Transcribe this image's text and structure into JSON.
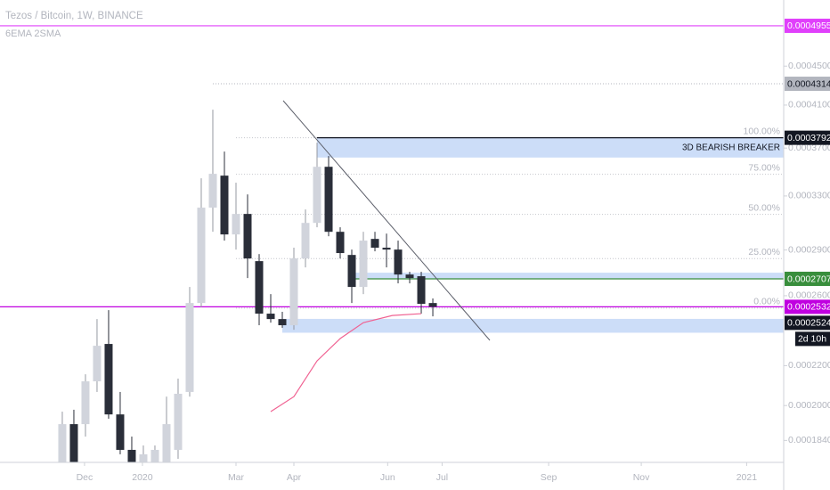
{
  "chart_data": {
    "type": "candlestick",
    "title": "Tezos / Bitcoin, 1W, BINANCE",
    "subtitle": "6EMA 2SMA",
    "log_scale": true,
    "ylim": [
      0.0001746,
      0.000527
    ],
    "yticks": [
      {
        "value": 0.00045,
        "label": "0.0004500"
      },
      {
        "value": 0.00041,
        "label": "0.0004100"
      },
      {
        "value": 0.00037,
        "label": "0.0003700"
      },
      {
        "value": 0.00033,
        "label": "0.0003300"
      },
      {
        "value": 0.00029,
        "label": "0.0002900"
      },
      {
        "value": 0.00026,
        "label": "0.0002600"
      },
      {
        "value": 0.00022,
        "label": "0.0002200"
      },
      {
        "value": 0.0002,
        "label": "0.0002000"
      },
      {
        "value": 0.000184,
        "label": "0.0001840"
      }
    ],
    "xlim": [
      -5.38,
      62.3
    ],
    "xticks": [
      {
        "value": 1.92,
        "label": "Dec"
      },
      {
        "value": 6.92,
        "label": "2020"
      },
      {
        "value": 15.0,
        "label": "Mar"
      },
      {
        "value": 20.0,
        "label": "Apr"
      },
      {
        "value": 28.1,
        "label": "Jun"
      },
      {
        "value": 32.8,
        "label": "Jul"
      },
      {
        "value": 42.0,
        "label": "Sep"
      },
      {
        "value": 50.0,
        "label": "Nov"
      },
      {
        "value": 59.1,
        "label": "2021"
      }
    ],
    "x": [
      0,
      1,
      2,
      3,
      4,
      5,
      6,
      7,
      8,
      9,
      10,
      11,
      12,
      13,
      14,
      15,
      16,
      17,
      18,
      19,
      20,
      21,
      22,
      23,
      24,
      25,
      26,
      27,
      28,
      29,
      30,
      31,
      32
    ],
    "open": [
      0.0001746,
      0.0001913,
      0.0001913,
      0.0002119,
      0.0002317,
      0.0001958,
      0.0001799,
      0.0001746,
      0.0001746,
      0.0001746,
      0.0001799,
      0.0002066,
      0.0002555,
      0.0003209,
      0.0003464,
      0.000301,
      0.0003161,
      0.0002824,
      0.0002491,
      0.0002459,
      0.0002423,
      0.0002842,
      0.0003094,
      0.0003538,
      0.0003029,
      0.0002866,
      0.0002655,
      0.0002978,
      0.0002916,
      0.0002903,
      0.0002735,
      0.0002724,
      0.0002555
    ],
    "high": [
      0.0001971,
      0.000198,
      0.0002155,
      0.0002459,
      0.0002512,
      0.0002066,
      0.0001857,
      0.0001818,
      0.0001818,
      0.0002043,
      0.0002133,
      0.0002655,
      0.0003442,
      0.0004055,
      0.0003669,
      0.0003406,
      0.0003312,
      0.0002872,
      0.000261,
      0.0002502,
      0.0002916,
      0.0003195,
      0.0003748,
      0.000363,
      0.0003062,
      0.0002903,
      0.0003029,
      0.0003029,
      0.0003016,
      0.0002966,
      0.0002753,
      0.0002753,
      0.0002583
    ],
    "low": [
      0.0001746,
      0.0001746,
      0.0001857,
      0.0002066,
      0.0001938,
      0.000178,
      0.0001746,
      0.0001746,
      0.0001746,
      0.0001746,
      0.0001761,
      0.0002043,
      0.0002528,
      0.0003029,
      0.0002966,
      0.0002903,
      0.0002712,
      0.0002423,
      0.0002438,
      0.0002408,
      0.0002397,
      0.0002782,
      0.0003062,
      0.0002997,
      0.0002842,
      0.0002555,
      0.000261,
      0.0002891,
      0.0002782,
      0.0002678,
      0.0002678,
      0.0002491,
      0.0002475
    ],
    "close": [
      0.0001913,
      0.0001746,
      0.0002119,
      0.0002307,
      0.0001958,
      0.0001799,
      0.0001746,
      0.000178,
      0.0001799,
      0.0001913,
      0.0002057,
      0.0002555,
      0.0003209,
      0.0003479,
      0.000301,
      0.0003161,
      0.0002842,
      0.0002491,
      0.0002459,
      0.0002423,
      0.0002842,
      0.0003094,
      0.0003538,
      0.0003029,
      0.0002879,
      0.0002655,
      0.0002966,
      0.0002916,
      0.0002903,
      0.0002735,
      0.0002712,
      0.000255,
      0.0002532
    ],
    "up_color": "#d1d4dc",
    "down_color": "#2a2e39",
    "ema": {
      "x": [
        18,
        20,
        22,
        24,
        26,
        28.5,
        31
      ],
      "values": [
        0.0001971,
        0.0002043,
        0.0002225,
        0.0002347,
        0.0002438,
        0.000248,
        0.0002491
      ],
      "color": "#f06292"
    },
    "fib": {
      "high": 0.0003792,
      "low": 0.0002524,
      "from": 15,
      "levels": [
        {
          "value": 100,
          "label": "100.00%"
        },
        {
          "value": 75,
          "label": "75.00%"
        },
        {
          "value": 50,
          "label": "50.00%"
        },
        {
          "value": 25,
          "label": "25.00%"
        },
        {
          "value": 0,
          "label": "0.00%"
        }
      ]
    },
    "zones": [
      {
        "from": 22,
        "top": 0.0003792,
        "bottom": 0.0003617,
        "color": "#bbd2f5"
      },
      {
        "from": 25,
        "top": 0.0002747,
        "bottom": 0.0002707,
        "color": "#bbd2f5"
      },
      {
        "from": 19,
        "top": 0.000246,
        "bottom": 0.000238,
        "color": "#bbd2f5"
      }
    ],
    "zone_label": "3D BEARISH BREAKER",
    "price_lines": [
      {
        "value": 0.0004955,
        "label": "0.0004955",
        "color": "#e040fb",
        "text_color": "#ffffff",
        "style": "solid",
        "from": -5.38
      },
      {
        "value": 0.0004314,
        "label": "0.0004314",
        "color": "#b2b5be",
        "text_color": "#131722",
        "style": "dotted",
        "from": 13
      },
      {
        "value": 0.0003792,
        "label": "0.0003792",
        "color": "#131722",
        "text_color": "#ffffff",
        "style": "solid",
        "from": 22
      },
      {
        "value": 0.0002707,
        "label": "0.0002707",
        "color": "#388e3c",
        "text_color": "#ffffff",
        "style": "solid",
        "from": 25
      },
      {
        "value": 0.0002532,
        "label": "0.0002532",
        "color": "#c000e0",
        "text_color": "#ffffff",
        "style": "solid",
        "from": -5.38
      },
      {
        "value": 0.0002524,
        "label": "0.0002524",
        "color": "#131722",
        "text_color": "#ffffff",
        "style": "none",
        "from": 62.3
      }
    ],
    "countdown": "2d 10h"
  }
}
